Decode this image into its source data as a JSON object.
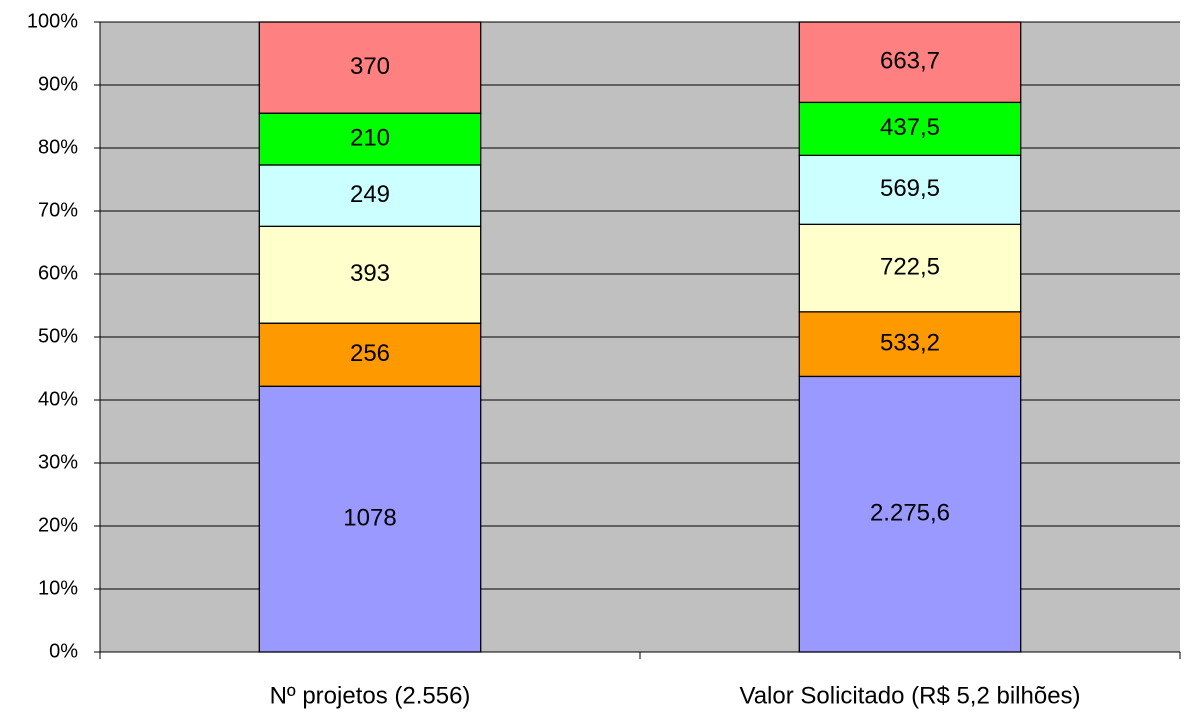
{
  "chart_data": {
    "type": "bar",
    "stacking": "percent",
    "categories": [
      "Nº projetos (2.556)",
      "Valor Solicitado (R$ 5,2 bilhões)"
    ],
    "series": [
      {
        "color": "#9999ff",
        "values": [
          1078,
          2275.6
        ],
        "value_labels": [
          "1078",
          "2.275,6"
        ]
      },
      {
        "color": "#ff9900",
        "values": [
          256,
          533.2
        ],
        "value_labels": [
          "256",
          "533,2"
        ]
      },
      {
        "color": "#ffffcc",
        "values": [
          393,
          722.5
        ],
        "value_labels": [
          "393",
          "722,5"
        ]
      },
      {
        "color": "#ccffff",
        "values": [
          249,
          569.5
        ],
        "value_labels": [
          "249",
          "569,5"
        ]
      },
      {
        "color": "#00ff00",
        "values": [
          210,
          437.5
        ],
        "value_labels": [
          "210",
          "437,5"
        ]
      },
      {
        "color": "#ff8080",
        "values": [
          370,
          663.7
        ],
        "value_labels": [
          "370",
          "663,7"
        ]
      }
    ],
    "ylim": [
      0,
      100
    ],
    "yticks": [
      {
        "value": 0,
        "label": "0%"
      },
      {
        "value": 10,
        "label": "10%"
      },
      {
        "value": 20,
        "label": "20%"
      },
      {
        "value": 30,
        "label": "30%"
      },
      {
        "value": 40,
        "label": "40%"
      },
      {
        "value": 50,
        "label": "50%"
      },
      {
        "value": 60,
        "label": "60%"
      },
      {
        "value": 70,
        "label": "70%"
      },
      {
        "value": 80,
        "label": "80%"
      },
      {
        "value": 90,
        "label": "90%"
      },
      {
        "value": 100,
        "label": "100%"
      }
    ],
    "grid": true,
    "plot_background": "#c0c0c0"
  }
}
